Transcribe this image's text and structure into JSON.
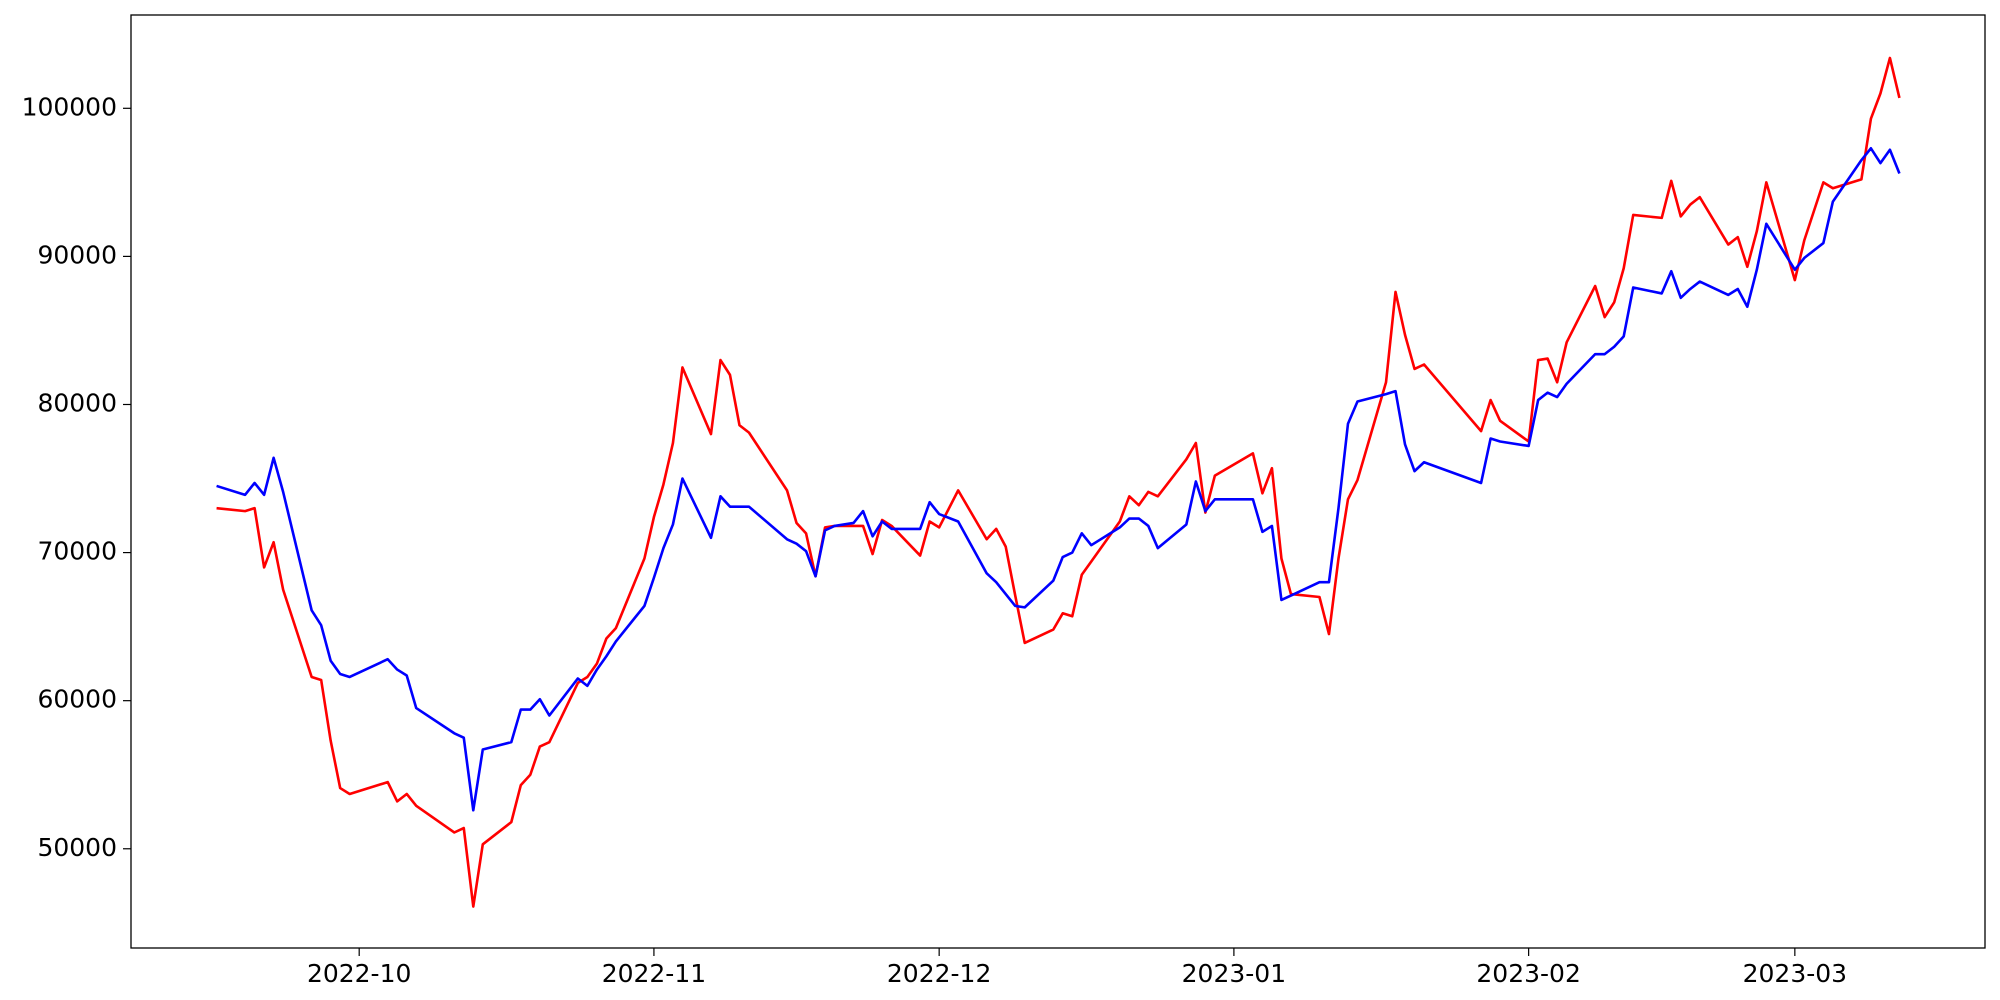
{
  "chart_data": {
    "type": "line",
    "x": [
      19251,
      19254,
      19255,
      19256,
      19257,
      19258,
      19261,
      19262,
      19263,
      19264,
      19265,
      19269,
      19270,
      19271,
      19272,
      19276,
      19277,
      19278,
      19279,
      19282,
      19283,
      19284,
      19285,
      19286,
      19289,
      19290,
      19291,
      19292,
      19293,
      19296,
      19297,
      19298,
      19299,
      19300,
      19303,
      19304,
      19305,
      19306,
      19307,
      19311,
      19312,
      19313,
      19314,
      19315,
      19316,
      19318,
      19319,
      19320,
      19321,
      19322,
      19325,
      19326,
      19327,
      19329,
      19332,
      19333,
      19334,
      19335,
      19336,
      19339,
      19340,
      19341,
      19342,
      19343,
      19346,
      19347,
      19348,
      19349,
      19350,
      19353,
      19354,
      19355,
      19356,
      19360,
      19361,
      19362,
      19363,
      19364,
      19367,
      19368,
      19369,
      19370,
      19371,
      19374,
      19375,
      19376,
      19377,
      19378,
      19384,
      19385,
      19386,
      19389,
      19390,
      19391,
      19392,
      19393,
      19396,
      19397,
      19398,
      19399,
      19400,
      19403,
      19404,
      19405,
      19406,
      19407,
      19410,
      19411,
      19412,
      19413,
      19414,
      19417,
      19418,
      19420,
      19421,
      19424,
      19425,
      19426,
      19427,
      19428
    ],
    "series": [
      {
        "color": "#ff0000",
        "values": [
          73000,
          72800,
          73000,
          69000,
          70700,
          67500,
          61600,
          61400,
          57300,
          54100,
          53700,
          54500,
          53200,
          53700,
          52900,
          51100,
          51400,
          46100,
          50300,
          51800,
          54300,
          55000,
          56900,
          57200,
          61200,
          61600,
          62500,
          64200,
          64900,
          69600,
          72400,
          74600,
          77400,
          82500,
          78000,
          83000,
          82000,
          78600,
          78100,
          74200,
          72000,
          71300,
          68400,
          71700,
          71800,
          71800,
          71800,
          69900,
          72200,
          71800,
          69800,
          72100,
          71700,
          74200,
          70900,
          71600,
          70400,
          67100,
          63900,
          64800,
          65900,
          65700,
          68500,
          69400,
          72100,
          73800,
          73200,
          74100,
          73800,
          76300,
          77400,
          72700,
          75200,
          76700,
          74000,
          75700,
          69600,
          67200,
          67000,
          64500,
          69600,
          73600,
          74900,
          81500,
          87600,
          84700,
          82400,
          82700,
          78200,
          80300,
          78900,
          77500,
          83000,
          83100,
          81500,
          84200,
          88000,
          85900,
          86900,
          89200,
          92800,
          92600,
          95100,
          92700,
          93500,
          94000,
          90800,
          91300,
          89300,
          91700,
          95000,
          88400,
          91100,
          95000,
          94600,
          95200,
          99300,
          101000,
          103400,
          100700
        ]
      },
      {
        "color": "#0000ff",
        "values": [
          74500,
          73900,
          74700,
          73900,
          76400,
          74100,
          66100,
          65100,
          62700,
          61800,
          61600,
          62800,
          62100,
          61700,
          59500,
          57800,
          57500,
          52600,
          56700,
          57200,
          59400,
          59400,
          60100,
          59000,
          61500,
          61000,
          62100,
          63000,
          64000,
          66400,
          68300,
          70300,
          71900,
          75000,
          71000,
          73800,
          73100,
          73100,
          73100,
          70900,
          70600,
          70100,
          68400,
          71500,
          71800,
          72000,
          72800,
          71100,
          72100,
          71600,
          71600,
          73400,
          72600,
          72100,
          68600,
          68000,
          67200,
          66400,
          66300,
          68100,
          69700,
          70000,
          71300,
          70500,
          71700,
          72300,
          72300,
          71800,
          70300,
          71900,
          74800,
          72800,
          73600,
          73600,
          71400,
          71800,
          66800,
          67100,
          68000,
          68000,
          73000,
          78700,
          80200,
          80700,
          80900,
          77300,
          75500,
          76100,
          74700,
          77700,
          77500,
          77200,
          80300,
          80800,
          80500,
          81400,
          83400,
          83400,
          83900,
          84600,
          87900,
          87500,
          89000,
          87200,
          87800,
          88300,
          87400,
          87800,
          86600,
          89100,
          92200,
          89100,
          89900,
          90900,
          93700,
          96500,
          97300,
          96300,
          97200,
          95600
        ]
      }
    ],
    "xlim": [
      19242,
      19437
    ],
    "xticks": [
      {
        "value": 19266,
        "label": "2022-10"
      },
      {
        "value": 19297,
        "label": "2022-11"
      },
      {
        "value": 19327,
        "label": "2022-12"
      },
      {
        "value": 19358,
        "label": "2023-01"
      },
      {
        "value": 19389,
        "label": "2023-02"
      },
      {
        "value": 19417,
        "label": "2023-03"
      }
    ],
    "ylim": [
      43300,
      106300
    ],
    "yticks": [
      50000,
      60000,
      70000,
      80000,
      90000,
      100000
    ],
    "grid": false
  }
}
